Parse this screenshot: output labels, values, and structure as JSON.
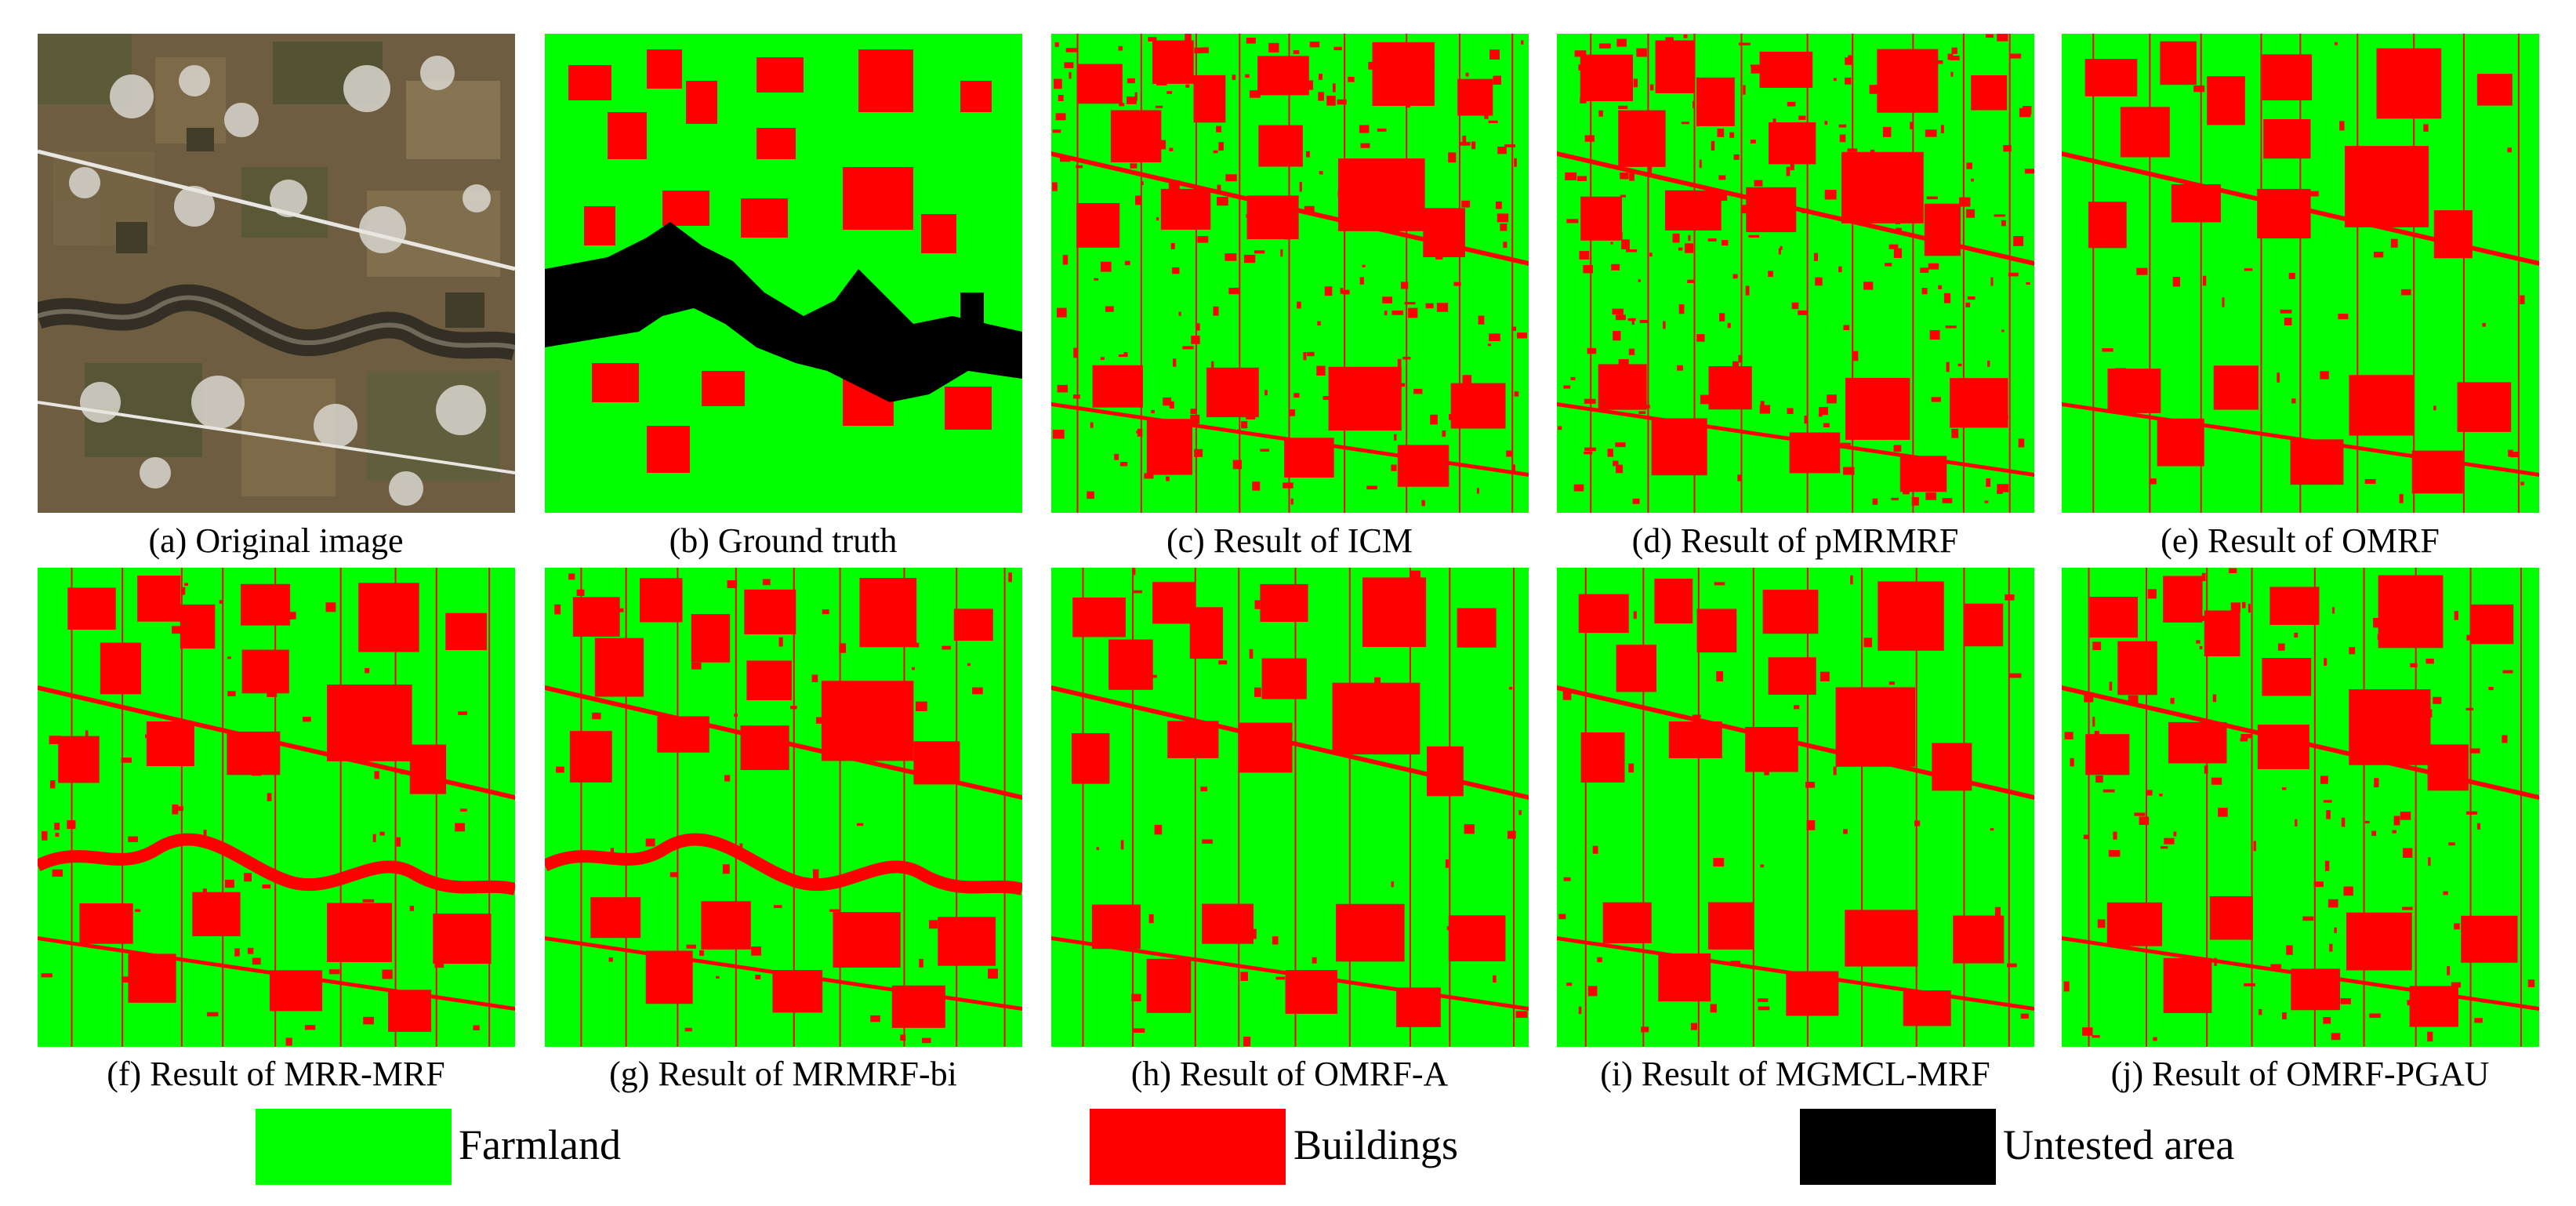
{
  "figure": {
    "panels": [
      {
        "id": "a",
        "caption": "(a) Original image",
        "kind": "photo"
      },
      {
        "id": "b",
        "caption": "(b) Ground truth",
        "kind": "ground-truth"
      },
      {
        "id": "c",
        "caption": "(c) Result of ICM",
        "kind": "result",
        "noise": "high"
      },
      {
        "id": "d",
        "caption": "(d) Result of pMRMRF",
        "kind": "result",
        "noise": "high"
      },
      {
        "id": "e",
        "caption": "(e) Result of OMRF",
        "kind": "result",
        "noise": "low"
      },
      {
        "id": "f",
        "caption": "(f) Result of MRR-MRF",
        "kind": "result",
        "noise": "river"
      },
      {
        "id": "g",
        "caption": "(g) Result of MRMRF-bi",
        "kind": "result",
        "noise": "river"
      },
      {
        "id": "h",
        "caption": "(h) Result of OMRF-A",
        "kind": "result",
        "noise": "low"
      },
      {
        "id": "i",
        "caption": "(i) Result of MGMCL-MRF",
        "kind": "result",
        "noise": "low"
      },
      {
        "id": "j",
        "caption": "(j) Result of OMRF-PGAU",
        "kind": "result",
        "noise": "medium"
      }
    ],
    "legend": [
      {
        "label": "Farmland",
        "color": "#00ff00"
      },
      {
        "label": "Buildings",
        "color": "#ff0000"
      },
      {
        "label": "Untested area",
        "color": "#000000"
      }
    ],
    "colors": {
      "farmland": "#00ff00",
      "buildings": "#ff0000",
      "untested": "#000000",
      "photo_soil": "#6b5a3e"
    }
  }
}
